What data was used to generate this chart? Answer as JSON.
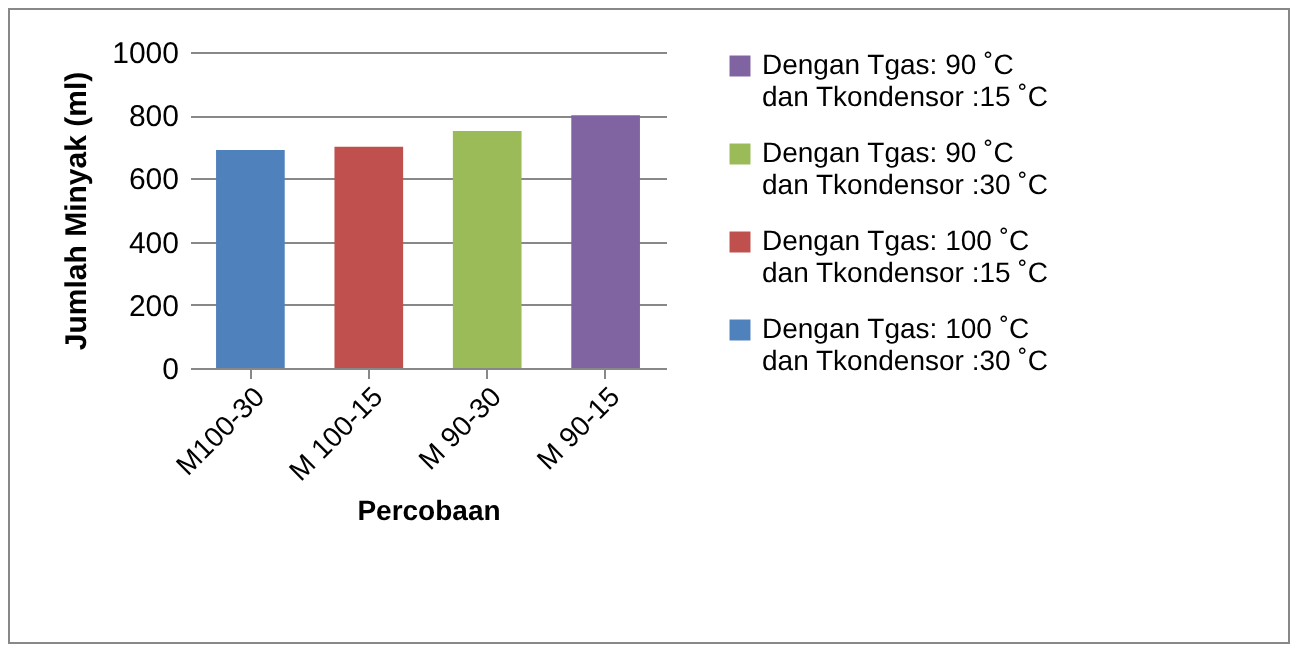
{
  "chart_data": {
    "type": "bar",
    "xlabel": "Percobaan",
    "ylabel": "Jumlah Minyak (ml)",
    "categories": [
      "M100-30",
      "M 100-15",
      "M 90-30",
      "M 90-15"
    ],
    "series": [
      {
        "name": "Dengan Tgas: 100 ˚C dan Tkondensor :30 ˚C",
        "color": "#4f81bd",
        "values": [
          690,
          null,
          null,
          null
        ]
      },
      {
        "name": "Dengan Tgas: 100 ˚C dan Tkondensor :15 ˚C",
        "color": "#c0504d",
        "values": [
          null,
          700,
          null,
          null
        ]
      },
      {
        "name": "Dengan Tgas: 90 ˚C dan Tkondensor :30 ˚C",
        "color": "#9bbb59",
        "values": [
          null,
          null,
          750,
          null
        ]
      },
      {
        "name": "Dengan Tgas: 90 ˚C dan Tkondensor :15 ˚C",
        "color": "#8064a2",
        "values": [
          null,
          null,
          null,
          800
        ]
      }
    ],
    "ylim": [
      0,
      1000
    ],
    "yticks": [
      0,
      200,
      400,
      600,
      800,
      1000
    ],
    "grid": "y",
    "legend": "right"
  }
}
